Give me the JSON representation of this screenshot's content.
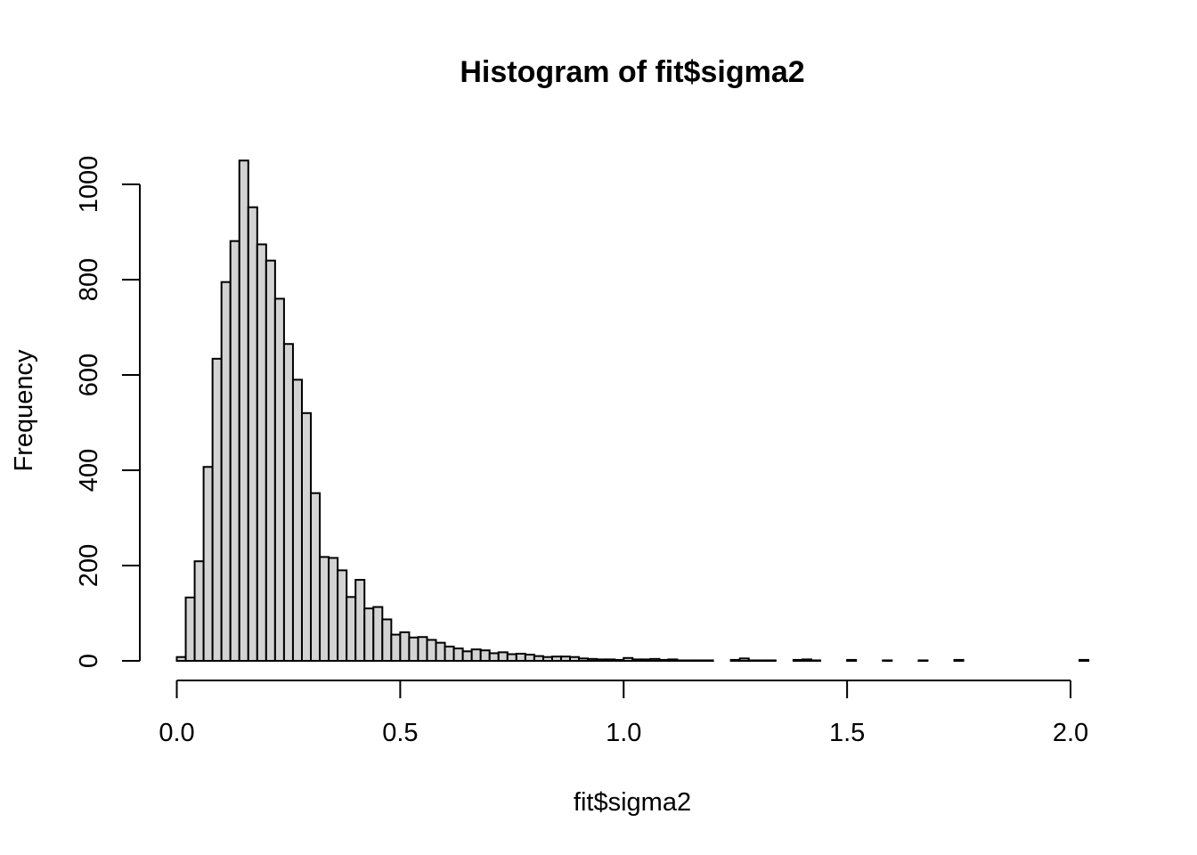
{
  "chart_data": {
    "type": "bar",
    "title": "Histogram of fit$sigma2",
    "xlabel": "fit$sigma2",
    "ylabel": "Frequency",
    "bin_width": 0.02,
    "x_start": 0.0,
    "xlim": [
      0.0,
      2.04
    ],
    "ylim": [
      0,
      1050
    ],
    "x_ticks": [
      0.0,
      0.5,
      1.0,
      1.5,
      2.0
    ],
    "x_tick_labels": [
      "0.0",
      "0.5",
      "1.0",
      "1.5",
      "2.0"
    ],
    "y_ticks": [
      0,
      200,
      400,
      600,
      800,
      1000
    ],
    "y_tick_labels": [
      "0",
      "200",
      "400",
      "600",
      "800",
      "1000"
    ],
    "grid": false,
    "bar_fill": "#d3d3d3",
    "values": [
      8,
      133,
      209,
      407,
      634,
      795,
      881,
      1050,
      952,
      874,
      840,
      760,
      665,
      590,
      520,
      352,
      218,
      216,
      190,
      134,
      170,
      110,
      113,
      87,
      55,
      60,
      49,
      50,
      44,
      38,
      30,
      26,
      20,
      24,
      22,
      16,
      18,
      14,
      15,
      13,
      10,
      8,
      9,
      9,
      8,
      5,
      4,
      3,
      3,
      2,
      6,
      3,
      3,
      4,
      2,
      3,
      1,
      1,
      1,
      1,
      0,
      0,
      2,
      5,
      1,
      1,
      1,
      0,
      0,
      2,
      3,
      1,
      0,
      0,
      0,
      2,
      0,
      0,
      0,
      1,
      0,
      0,
      0,
      1,
      0,
      0,
      0,
      2,
      0,
      0,
      0,
      0,
      0,
      0,
      0,
      0,
      0,
      0,
      0,
      0,
      0,
      2
    ]
  }
}
